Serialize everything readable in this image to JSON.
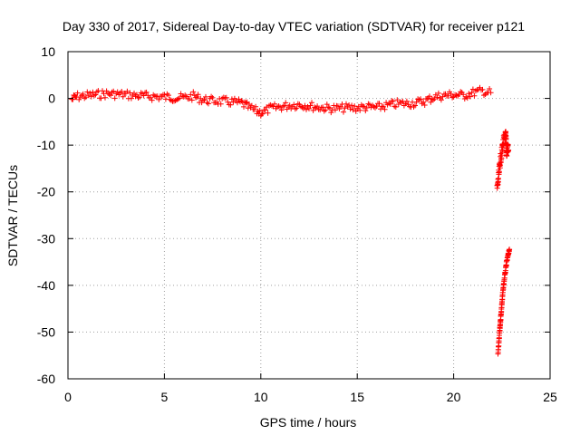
{
  "chart_data": {
    "type": "scatter",
    "title": "Day 330 of 2017, Sidereal Day-to-day VTEC variation (SDTVAR) for receiver p121",
    "xlabel": "GPS time / hours",
    "ylabel": "SDTVAR / TECUs",
    "xlim": [
      0,
      25
    ],
    "ylim": [
      -60,
      10
    ],
    "xticks": [
      0,
      5,
      10,
      15,
      20,
      25
    ],
    "yticks": [
      10,
      0,
      -10,
      -20,
      -30,
      -40,
      -50,
      -60
    ],
    "grid": true,
    "legend": "none",
    "marker": "plus",
    "series": [
      {
        "color": "#ff0000",
        "segments": [
          {
            "x": [
              0.2,
              0.5,
              1.0,
              1.5,
              2.0,
              2.5,
              3.0,
              3.5,
              4.0,
              4.5,
              5.0,
              5.5,
              6.0,
              6.5,
              7.0,
              7.5,
              8.0,
              8.5,
              9.0,
              9.4,
              9.8,
              10.1,
              10.5,
              11.0,
              11.5,
              12.0,
              12.5,
              13.0,
              13.5,
              14.0,
              14.5,
              15.0,
              15.5,
              16.0,
              16.5,
              17.0,
              17.5,
              18.0,
              18.5,
              19.0,
              19.5,
              20.0,
              20.5,
              21.0,
              21.5,
              22.0
            ],
            "y": [
              -0.2,
              0.4,
              0.6,
              0.8,
              1.0,
              0.9,
              0.8,
              0.6,
              0.5,
              0.4,
              0.3,
              0.2,
              0.1,
              0.5,
              -0.3,
              -0.5,
              -0.6,
              -0.8,
              -1.0,
              -2.0,
              -2.8,
              -3.0,
              -2.2,
              -1.8,
              -1.5,
              -1.3,
              -1.6,
              -1.9,
              -2.1,
              -2.2,
              -2.0,
              -2.0,
              -1.9,
              -2.0,
              -1.6,
              -1.2,
              -1.1,
              -1.0,
              -0.6,
              0.3,
              0.6,
              0.8,
              0.6,
              1.2,
              1.6,
              1.1
            ],
            "spread": 0.9
          },
          {
            "x": [
              22.25,
              22.3,
              22.35,
              22.4,
              22.45,
              22.5,
              22.55,
              22.6,
              22.65,
              22.7,
              22.75,
              22.8,
              22.85
            ],
            "y": [
              -19.5,
              -18.0,
              -16.0,
              -14.0,
              -12.5,
              -11.5,
              -10.0,
              -9.0,
              -8.5,
              -8.0,
              -12.0,
              -10.0,
              -12.0
            ],
            "spread": 1.2
          },
          {
            "x": [
              22.3,
              22.35,
              22.4,
              22.45,
              22.5,
              22.55,
              22.6,
              22.65,
              22.7,
              22.75,
              22.8,
              22.85,
              22.9
            ],
            "y": [
              -54.5,
              -52.0,
              -49.0,
              -46.5,
              -44.0,
              -41.5,
              -39.5,
              -38.0,
              -36.5,
              -35.0,
              -34.0,
              -33.0,
              -32.0
            ],
            "spread": 0.3
          }
        ]
      }
    ]
  }
}
